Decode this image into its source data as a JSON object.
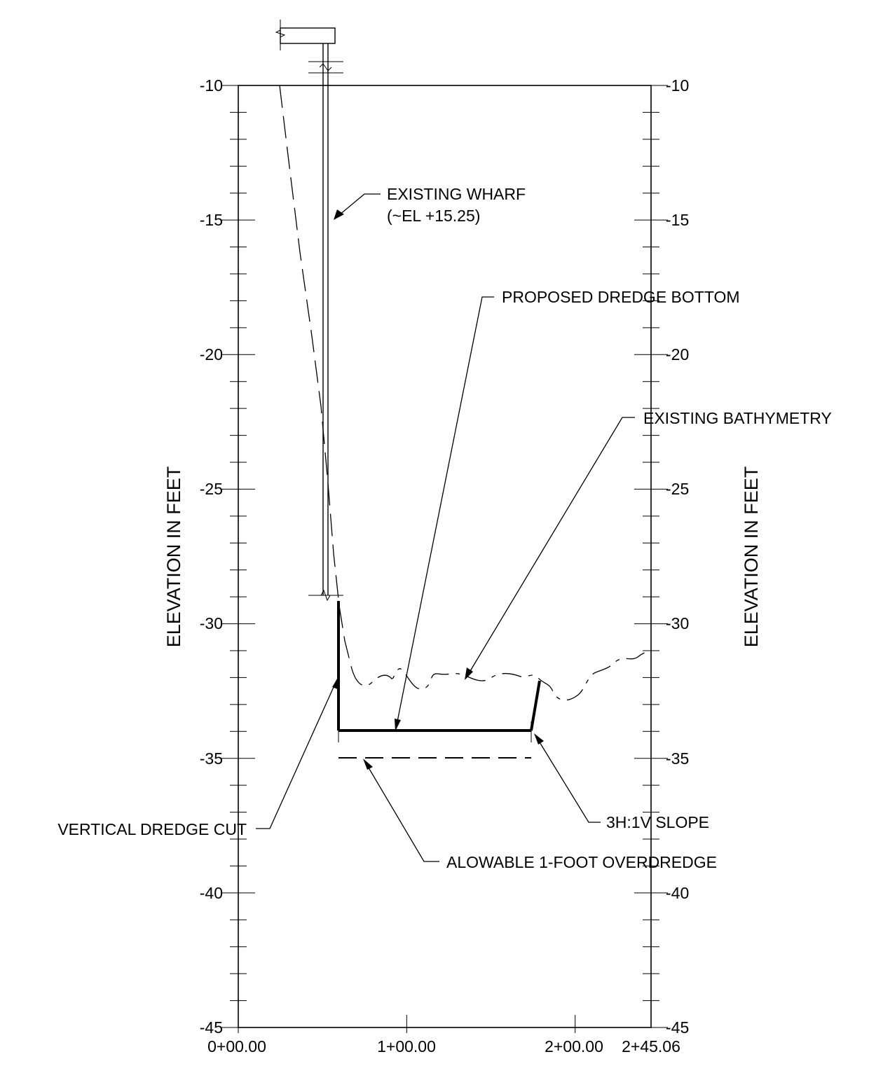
{
  "drawing": {
    "left_axis_title": "ELEVATION IN FEET",
    "right_axis_title": "ELEVATION IN FEET",
    "y_ticks": [
      {
        "value": -10,
        "label": "-10"
      },
      {
        "value": -15,
        "label": "-15"
      },
      {
        "value": -20,
        "label": "-20"
      },
      {
        "value": -25,
        "label": "-25"
      },
      {
        "value": -30,
        "label": "-30"
      },
      {
        "value": -35,
        "label": "-35"
      },
      {
        "value": -40,
        "label": "-40"
      },
      {
        "value": -45,
        "label": "-45"
      }
    ],
    "x_ticks": [
      {
        "station": 0,
        "label": "0+00.00"
      },
      {
        "station": 100,
        "label": "1+00.00"
      },
      {
        "station": 200,
        "label": "2+00.00"
      },
      {
        "station": 245.06,
        "label": "2+45.06"
      }
    ],
    "y_range": [
      -45,
      -10
    ],
    "x_range": [
      0,
      245.06
    ],
    "annotations": {
      "existing_wharf": "EXISTING WHARF",
      "existing_wharf_elev": "(~EL +15.25)",
      "proposed_dredge_bottom": "PROPOSED DREDGE BOTTOM",
      "existing_bathymetry": "EXISTING BATHYMETRY",
      "vertical_dredge_cut": "VERTICAL DREDGE CUT",
      "slope": "3H:1V SLOPE",
      "overdredge": "ALOWABLE 1-FOOT OVERDREDGE"
    }
  }
}
